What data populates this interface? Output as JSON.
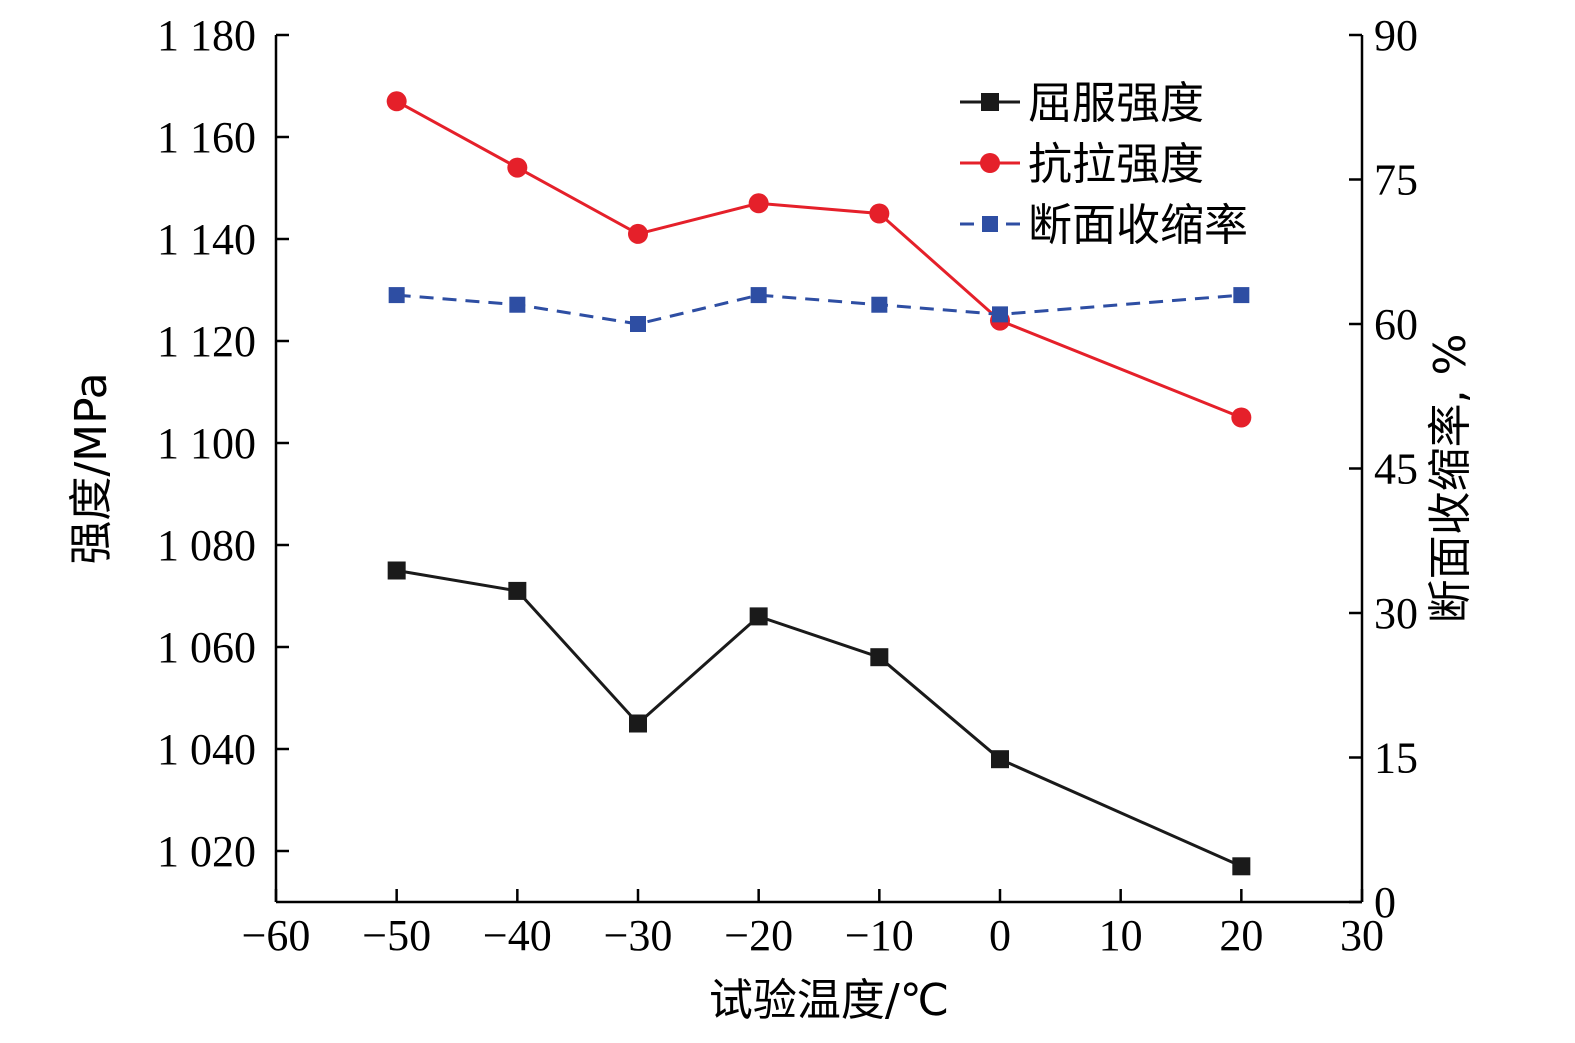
{
  "chart_data": {
    "type": "line",
    "xlabel": "试验温度/℃",
    "ylabel_left": "强度/MPa",
    "ylabel_right": "断面收缩率, %",
    "x_axis": {
      "range": [
        -60,
        30
      ],
      "ticks": [
        -60,
        -50,
        -40,
        -30,
        -20,
        -10,
        0,
        10,
        20,
        30
      ],
      "tick_labels": [
        "−60",
        "−50",
        "−40",
        "−30",
        "−20",
        "−10",
        "0",
        "10",
        "20",
        "30"
      ]
    },
    "y_axis_left": {
      "range": [
        1010,
        1180
      ],
      "ticks": [
        1020,
        1040,
        1060,
        1080,
        1100,
        1120,
        1140,
        1160,
        1180
      ],
      "tick_labels": [
        "1 020",
        "1 040",
        "1 060",
        "1 080",
        "1 100",
        "1 120",
        "1 140",
        "1 160",
        "1 180"
      ]
    },
    "y_axis_right": {
      "range": [
        0,
        90
      ],
      "ticks": [
        0,
        15,
        30,
        45,
        60,
        75,
        90
      ],
      "tick_labels": [
        "0",
        "15",
        "30",
        "45",
        "60",
        "75",
        "90"
      ]
    },
    "x": [
      -50,
      -40,
      -30,
      -20,
      -10,
      0,
      20
    ],
    "series": [
      {
        "name": "屈服强度",
        "axis": "left",
        "color": "#1a1a1a",
        "marker": "square",
        "dash": "solid",
        "values": [
          1075,
          1071,
          1045,
          1066,
          1058,
          1038,
          1017
        ]
      },
      {
        "name": "抗拉强度",
        "axis": "left",
        "color": "#e5202a",
        "marker": "circle",
        "dash": "solid",
        "values": [
          1167,
          1154,
          1141,
          1147,
          1145,
          1124,
          1105
        ]
      },
      {
        "name": "断面收缩率",
        "axis": "right",
        "color": "#2e4ea3",
        "marker": "square",
        "dash": "dashed",
        "values": [
          63,
          62,
          60,
          63,
          62,
          61,
          63
        ]
      }
    ],
    "legend_position": "top-right",
    "grid": false
  }
}
